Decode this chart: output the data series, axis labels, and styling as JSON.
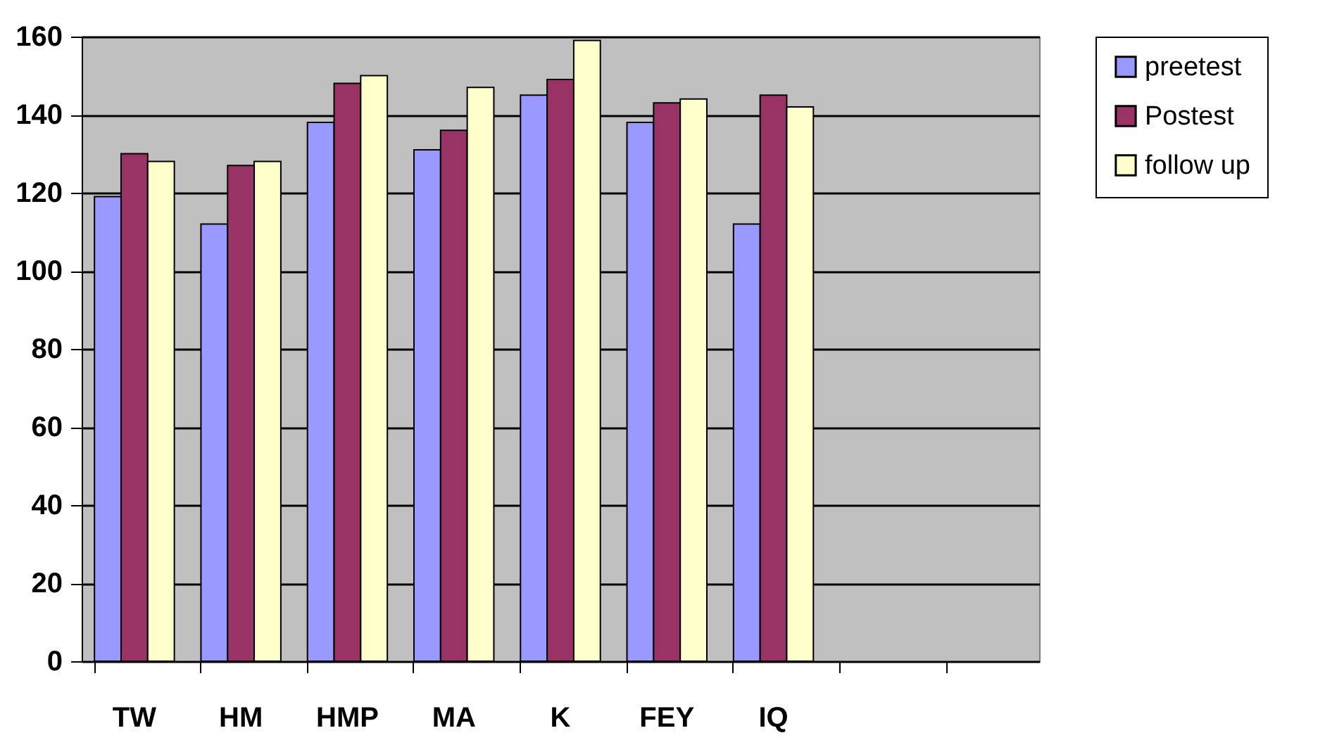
{
  "chart_data": {
    "type": "bar",
    "categories": [
      "TW",
      "HM",
      "HMP",
      "MA",
      "K",
      "FEY",
      "IQ",
      null,
      null
    ],
    "series": [
      {
        "name": "preetest",
        "color": "#9999ff",
        "values": [
          119,
          112,
          138,
          131,
          145,
          138,
          112,
          null,
          null
        ]
      },
      {
        "name": "Postest",
        "color": "#993366",
        "values": [
          130,
          127,
          148,
          136,
          149,
          143,
          145,
          null,
          null
        ]
      },
      {
        "name": "follow up",
        "color": "#ffffcc",
        "values": [
          128,
          128,
          150,
          147,
          159,
          144,
          142,
          null,
          null
        ]
      }
    ],
    "ylim": [
      0,
      160
    ],
    "yticks": [
      0,
      20,
      40,
      60,
      80,
      100,
      120,
      140,
      160
    ],
    "grid": "y",
    "legend": "right"
  }
}
